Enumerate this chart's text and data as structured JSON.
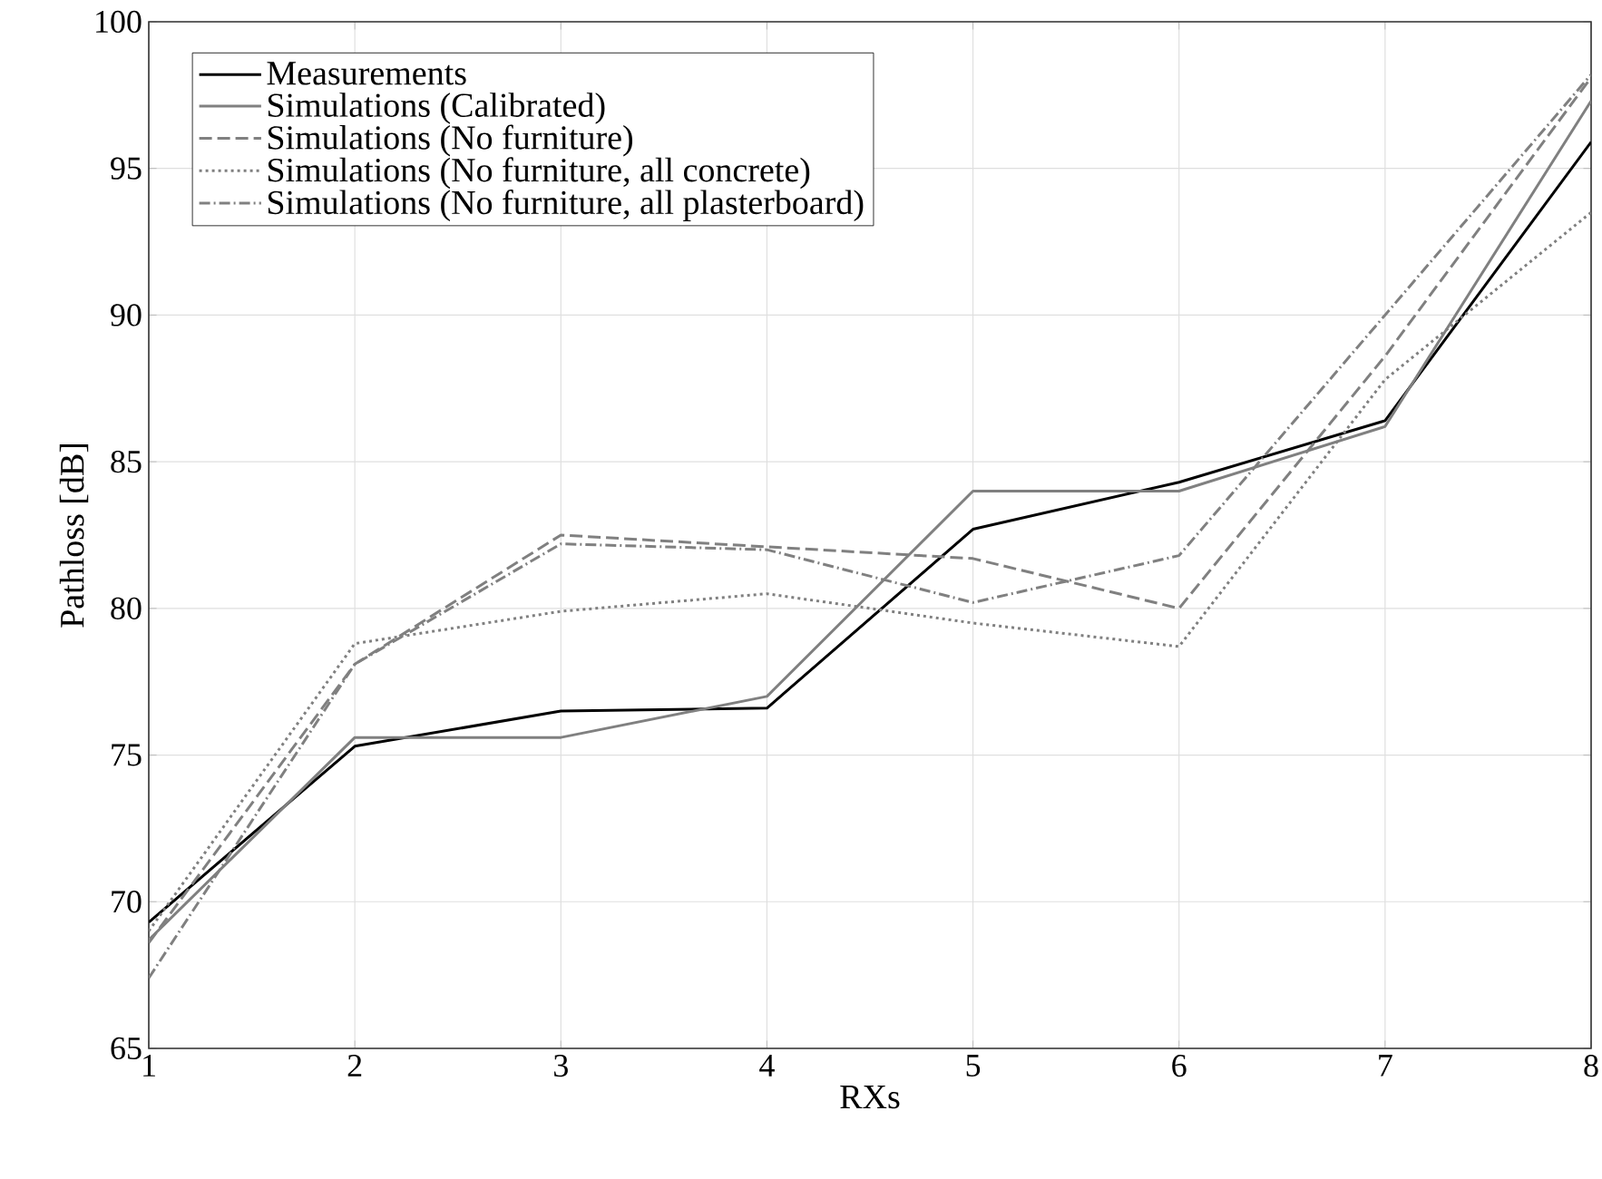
{
  "chart_data": {
    "type": "line",
    "xlabel": "RXs",
    "ylabel": "Pathloss [dB]",
    "x": [
      1,
      2,
      3,
      4,
      5,
      6,
      7,
      8
    ],
    "xlim": [
      1,
      8
    ],
    "xticks": [
      1,
      2,
      3,
      4,
      5,
      6,
      7,
      8
    ],
    "ylim": [
      65,
      100
    ],
    "yticks": [
      65,
      70,
      75,
      80,
      85,
      90,
      95,
      100
    ],
    "grid": true,
    "legend": "top left",
    "marker": "none",
    "series": [
      {
        "name": "Measurements",
        "color": "#000000",
        "line_style": "solid",
        "values": [
          69.3,
          75.3,
          76.5,
          76.6,
          82.7,
          84.3,
          86.4,
          95.9
        ]
      },
      {
        "name": "Simulations (Calibrated)",
        "color": "#808080",
        "line_style": "solid",
        "values": [
          68.7,
          75.6,
          75.6,
          77.0,
          84.0,
          84.0,
          86.2,
          97.3
        ]
      },
      {
        "name": "Simulations (No furniture)",
        "color": "#808080",
        "line_style": "dashed",
        "values": [
          68.6,
          78.1,
          82.5,
          82.1,
          81.7,
          80.0,
          88.6,
          98.1
        ]
      },
      {
        "name": "Simulations (No furniture, all concrete)",
        "color": "#808080",
        "line_style": "dotted",
        "values": [
          69.0,
          78.8,
          79.9,
          80.5,
          79.5,
          78.7,
          87.8,
          93.5
        ]
      },
      {
        "name": "Simulations (No furniture, all plasterboard)",
        "color": "#808080",
        "line_style": "dashdot",
        "values": [
          67.4,
          78.1,
          82.2,
          82.0,
          80.2,
          81.8,
          90.0,
          98.2
        ]
      }
    ]
  }
}
